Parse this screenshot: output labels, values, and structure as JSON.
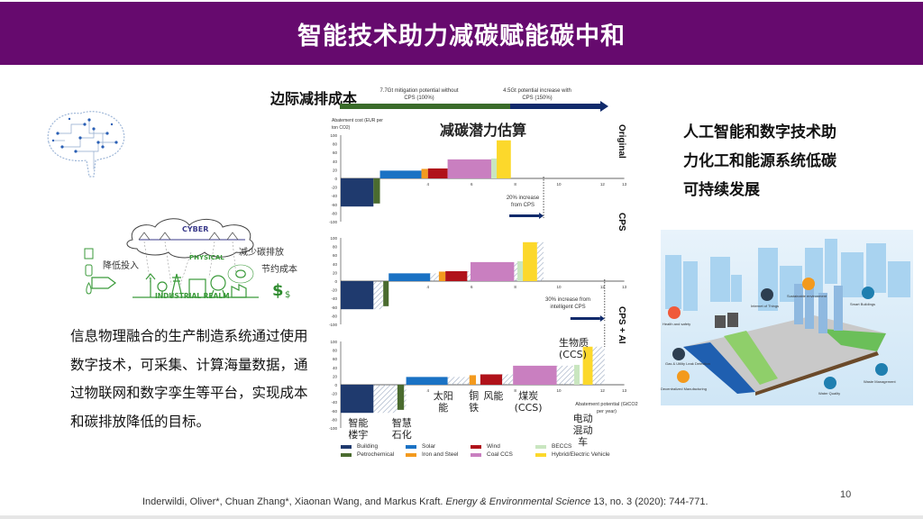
{
  "slide": {
    "title": "智能技术助力减碳赋能碳中和",
    "page_number": "10",
    "left_text": "信息物理融合的生产制造系统通过使用数字技术，可采集、计算海量数据，通过物联网和数字孪生等平台，实现成本和碳排放降低的目标。",
    "right_text_lines": [
      "人工智能和数字技术助",
      "力化工和能源系统低碳",
      "可持续发展"
    ],
    "citation": {
      "authors": "Inderwildi, Oliver*, Chuan Zhang*, Xiaonan Wang, and Markus Kraft. ",
      "journal": "Energy & Environmental Science",
      "details": " 13, no. 3 (2020): 744-771."
    }
  },
  "cps_diagram": {
    "cloud_label": "CYBER",
    "physical_label": "PHYSICAL",
    "realm_label": "INDUSTRIAL REALM",
    "input_label": "降低投入",
    "emission_label": "减少碳排放",
    "cost_label": "节约成本",
    "input_icons": [
      "oil-icon",
      "gas-icon",
      "water-icon"
    ]
  },
  "city_infographic": {
    "labels": [
      "Sustainable environment",
      "Internet of Things",
      "Smart Buildings",
      "Health and safety",
      "Gas & Utility Leak Detection",
      "Decentralized Manufacturing",
      "Water Quality",
      "Waste Management"
    ]
  },
  "chart_data": {
    "type": "bar",
    "subtype": "marginal abatement cost curve (variable-width bars)",
    "header_label": "边际减排成本",
    "title": "减碳潜力估算",
    "ylabel": "Abatement cost (EUR per ton CO2)",
    "xlabel": "Abatement potential (GtCO2 per year)",
    "ylim": [
      -100,
      100
    ],
    "yticks": [
      100,
      80,
      60,
      40,
      20,
      0,
      -20,
      -40,
      -60,
      -80,
      -100
    ],
    "xlim": [
      0,
      13
    ],
    "xticks": [
      4,
      6,
      8,
      10,
      12,
      13
    ],
    "top_arrow": {
      "segment1": {
        "label": "7.7Gt mitigation potential without CPS (100%)",
        "color": "#3a6b2a"
      },
      "segment2": {
        "label": "4.5Gt potential increase with CPS (150%)",
        "color": "#102a6b"
      }
    },
    "legend": [
      {
        "name": "Building",
        "color": "#1f3a6e"
      },
      {
        "name": "Petrochemical",
        "color": "#4a6b2f"
      },
      {
        "name": "Solar",
        "color": "#1a72c4"
      },
      {
        "name": "Iron and Steel",
        "color": "#f39a1e"
      },
      {
        "name": "Wind",
        "color": "#b0121a"
      },
      {
        "name": "Coal CCS",
        "color": "#c97fc0"
      },
      {
        "name": "BECCS",
        "color": "#c9e6c0"
      },
      {
        "name": "Hybrid/Electric Vehicle",
        "color": "#fcd82b"
      }
    ],
    "panels": [
      {
        "name": "Original",
        "annotation": null,
        "bars": [
          {
            "category": "Building",
            "x0": 0,
            "x1": 1.5,
            "value": -65
          },
          {
            "category": "Petrochemical",
            "x0": 1.5,
            "x1": 1.8,
            "value": -58
          },
          {
            "category": "Solar",
            "x0": 1.8,
            "x1": 3.7,
            "value": 18
          },
          {
            "category": "Iron and Steel",
            "x0": 3.7,
            "x1": 4.0,
            "value": 22
          },
          {
            "category": "Wind",
            "x0": 4.0,
            "x1": 4.9,
            "value": 23
          },
          {
            "category": "Coal CCS",
            "x0": 4.9,
            "x1": 6.9,
            "value": 44
          },
          {
            "category": "BECCS",
            "x0": 6.9,
            "x1": 7.15,
            "value": 46
          },
          {
            "category": "Hybrid/Electric Vehicle",
            "x0": 7.15,
            "x1": 7.8,
            "value": 88
          }
        ],
        "dashed_line_x": 9.3,
        "note": "20% increase from CPS"
      },
      {
        "name": "CPS",
        "bars": [
          {
            "category": "Building",
            "x0": 0,
            "x1": 1.5,
            "value": -65,
            "hatch_x1": 1.95
          },
          {
            "category": "Petrochemical",
            "x0": 1.95,
            "x1": 2.2,
            "value": -58
          },
          {
            "category": "Solar",
            "x0": 2.2,
            "x1": 4.1,
            "value": 18,
            "hatch_x1": 4.5
          },
          {
            "category": "Iron and Steel",
            "x0": 4.5,
            "x1": 4.8,
            "value": 22
          },
          {
            "category": "Wind",
            "x0": 4.8,
            "x1": 5.8,
            "value": 23,
            "hatch_x1": 5.95
          },
          {
            "category": "Coal CCS",
            "x0": 5.95,
            "x1": 7.95,
            "value": 44,
            "hatch_x1": 8.1
          },
          {
            "category": "BECCS",
            "x0": 8.1,
            "x1": 8.35,
            "value": 46
          },
          {
            "category": "Hybrid/Electric Vehicle",
            "x0": 8.35,
            "x1": 9.0,
            "value": 90,
            "hatch_x1": 9.3
          }
        ],
        "dashed_line_x": 12.1,
        "note": "30% increase from intelligent CPS"
      },
      {
        "name": "CPS + AI",
        "bars": [
          {
            "category": "Building",
            "x0": 0,
            "x1": 1.5,
            "value": -65,
            "hatch_x1": 2.6
          },
          {
            "category": "Petrochemical",
            "x0": 2.6,
            "x1": 2.9,
            "value": -58,
            "hatch_x1": 3.0
          },
          {
            "category": "Solar",
            "x0": 3.0,
            "x1": 4.9,
            "value": 18,
            "hatch_x1": 5.9
          },
          {
            "category": "Iron and Steel",
            "x0": 5.9,
            "x1": 6.2,
            "value": 22
          },
          {
            "category": "Wind",
            "x0": 6.4,
            "x1": 7.4,
            "value": 24,
            "hatch_x1": 7.9
          },
          {
            "category": "Coal CCS",
            "x0": 7.9,
            "x1": 9.9,
            "value": 44,
            "hatch_x1": 10.7
          },
          {
            "category": "BECCS",
            "x0": 10.7,
            "x1": 10.95,
            "value": 46
          },
          {
            "category": "Hybrid/Electric Vehicle",
            "x0": 11.1,
            "x1": 11.55,
            "value": 88,
            "hatch_x1": 12.1
          }
        ],
        "cn_labels": [
          {
            "text": "智能\n楼宇",
            "x": 0.8
          },
          {
            "text": "智慧\n石化",
            "x": 2.8
          },
          {
            "text": "太阳能",
            "x": 4.7
          },
          {
            "text": "铜\n铁",
            "x": 6.1
          },
          {
            "text": "风能",
            "x": 7.0
          },
          {
            "text": "煤炭\n(CCS)",
            "x": 8.6
          },
          {
            "text": "电动\n混动\n车",
            "x": 11.1
          }
        ],
        "bio_label": "生物质\n(CCS)"
      }
    ]
  }
}
